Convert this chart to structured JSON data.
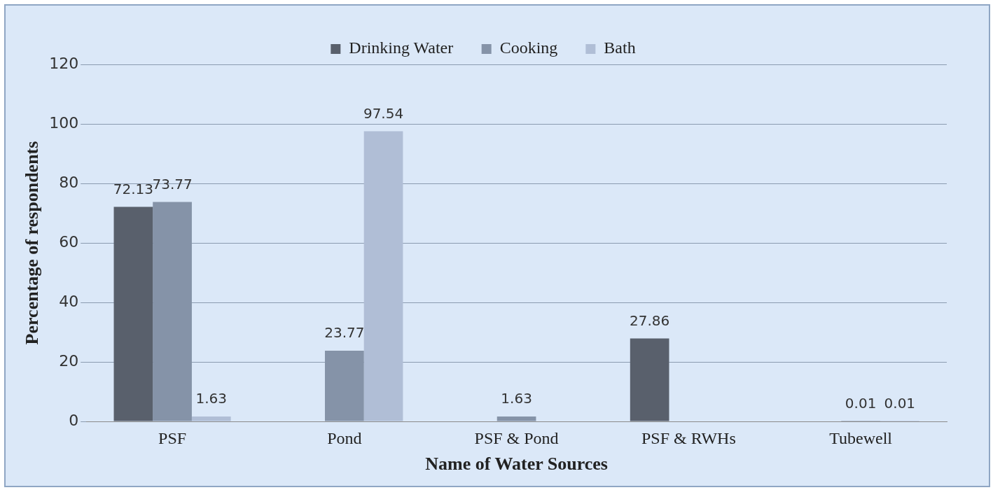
{
  "chart_data": {
    "type": "bar",
    "xlabel": "Name of Water Sources",
    "ylabel": "Percentage of respondents",
    "categories": [
      "PSF",
      "Pond",
      "PSF & Pond",
      "PSF & RWHs",
      "Tubewell"
    ],
    "series": [
      {
        "name": "Drinking Water",
        "color": "#59606c",
        "values": [
          72.13,
          null,
          null,
          27.86,
          null
        ],
        "value_labels": [
          "72.13",
          null,
          null,
          "27.86",
          null
        ]
      },
      {
        "name": "Cooking",
        "color": "#8593a8",
        "values": [
          73.77,
          23.77,
          1.63,
          null,
          0.01
        ],
        "value_labels": [
          "73.77",
          "23.77",
          "1.63",
          null,
          "0.01"
        ]
      },
      {
        "name": "Bath",
        "color": "#b0bed6",
        "values": [
          1.63,
          97.54,
          null,
          null,
          0.01
        ],
        "value_labels": [
          "1.63",
          "97.54",
          null,
          null,
          "0.01"
        ]
      }
    ],
    "ylim": [
      0,
      120
    ],
    "yticks": [
      0,
      20,
      40,
      60,
      80,
      100,
      120
    ],
    "grid": "y",
    "legend": "top"
  }
}
